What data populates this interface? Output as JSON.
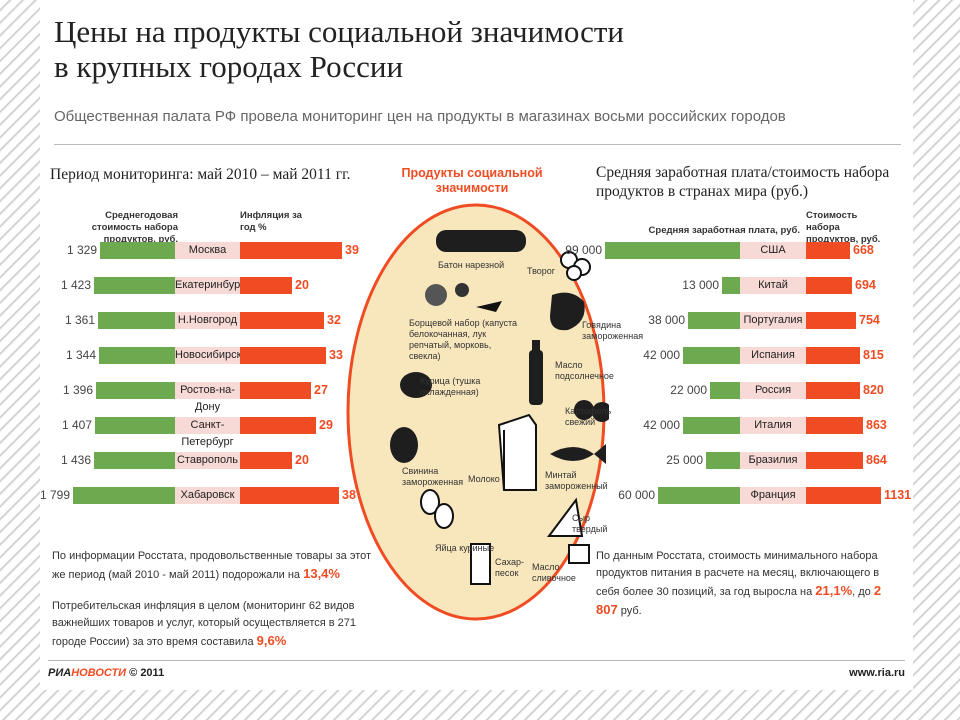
{
  "header": {
    "title_line1": "Цены на продукты социальной значимости",
    "title_line2": "в крупных городах России",
    "subtitle": "Общественная палата РФ провела мониторинг цен на продукты в магазинах восьми российских городов"
  },
  "colors": {
    "green": "#6daa4f",
    "orange": "#f04c23",
    "pink": "#f7d9d5",
    "circle": "#f8e7bd"
  },
  "left": {
    "section_title": "Период мониторинга: май 2010 – май 2011 гг.",
    "col1_header": "Среднегодовая стоимость набора продуктов, руб.",
    "col2_header": "Инфляция за год %",
    "notes": {
      "note1_text": "По информации Росстата, продовольственные товары за этот же период (май 2010 - май 2011) подорожали на",
      "note1_value": "13,4%",
      "note2_text": "Потребительская инфляция в целом (мониторинг 62 видов важнейших товаров и услуг, который осуществляется в 271 городе России) за это время составила",
      "note2_value": "9,6%"
    }
  },
  "center": {
    "title": "Продукты социальной значимости",
    "labels": [
      "Батон нарезной",
      "Творог",
      "Борщевой набор (капуста белокочанная, лук репчатый, морковь, свекла)",
      "Говядина замороженная",
      "Курица (тушка охлажденная)",
      "Масло подсолнечное",
      "Картофель свежий",
      "Свинина замороженная",
      "Молоко",
      "Минтай замороженный",
      "Яйца куриные",
      "Сыр твердый",
      "Сахар-песок",
      "Масло сливочное"
    ]
  },
  "right": {
    "section_title_line1": "Средняя заработная плата/стоимость набора",
    "section_title_line2": "продуктов в странах мира (руб.)",
    "col1_header": "Средняя заработная плата, руб.",
    "col2_header": "Стоимость набора продуктов, руб.",
    "note_text": "По данным Росстата, стоимость минимального набора продуктов питания в расчете на месяц, включающего в себя более 30 позиций, за год выросла на",
    "note_value1": "21,1%",
    "note_mid": ", до",
    "note_value2": "2 807",
    "note_unit": "руб."
  },
  "chart_data": [
    {
      "type": "bar",
      "title": "Период мониторинга: май 2010 – май 2011 гг.",
      "categories": [
        "Москва",
        "Екатеринбург",
        "Н.Новгород",
        "Новосибирск",
        "Ростов-на-Дону",
        "Санкт-Петербург",
        "Ставрополь",
        "Хабаровск"
      ],
      "series": [
        {
          "name": "Среднегодовая стоимость набора продуктов, руб.",
          "labels": [
            "1 329",
            "1 423",
            "1 361",
            "1 344",
            "1 396",
            "1 407",
            "1 436",
            "1 799"
          ],
          "values": [
            1329,
            1423,
            1361,
            1344,
            1396,
            1407,
            1436,
            1799
          ]
        },
        {
          "name": "Инфляция за год %",
          "values": [
            39,
            20,
            32,
            33,
            27,
            29,
            20,
            38
          ]
        }
      ]
    },
    {
      "type": "bar",
      "title": "Средняя заработная плата/стоимость набора продуктов в странах мира (руб.)",
      "categories": [
        "США",
        "Китай",
        "Португалия",
        "Испания",
        "Россия",
        "Италия",
        "Бразилия",
        "Франция"
      ],
      "series": [
        {
          "name": "Средняя заработная плата, руб.",
          "labels": [
            "99 000",
            "13 000",
            "38 000",
            "42 000",
            "22 000",
            "42 000",
            "25 000",
            "60 000"
          ],
          "values": [
            99000,
            13000,
            38000,
            42000,
            22000,
            42000,
            25000,
            60000
          ]
        },
        {
          "name": "Стоимость набора продуктов, руб.",
          "labels": [
            "668",
            "694",
            "754",
            "815",
            "820",
            "863",
            "864",
            "1131"
          ],
          "values": [
            668,
            694,
            754,
            815,
            820,
            863,
            864,
            1131
          ]
        }
      ]
    }
  ],
  "footer": {
    "brand_ria": "РИА",
    "brand_novosti": "НОВОСТИ",
    "copyright": "© 2011",
    "url": "www.ria.ru"
  }
}
